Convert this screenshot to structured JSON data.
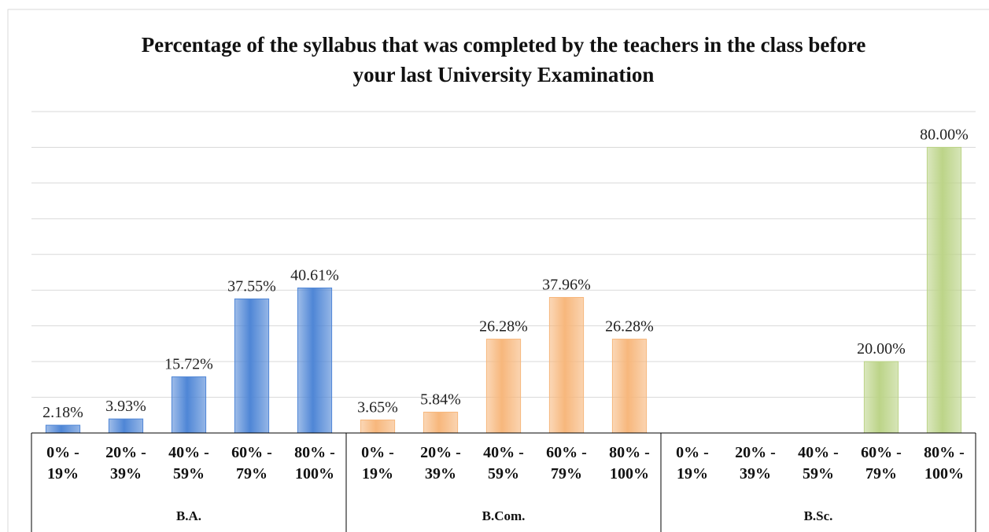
{
  "chart_data": {
    "type": "bar",
    "title": "Percentage of the syllabus that was completed by the teachers in the class before your last University Examination",
    "ylim": [
      0,
      90
    ],
    "yticks": [
      0,
      10,
      20,
      30,
      40,
      50,
      60,
      70,
      80,
      90
    ],
    "grid": true,
    "groups": [
      {
        "name": "B.A.",
        "color": "#4f86d6",
        "categories": [
          "0% - 19%",
          "20% - 39%",
          "40% - 59%",
          "60% - 79%",
          "80% - 100%"
        ],
        "values": [
          2.18,
          3.93,
          15.72,
          37.55,
          40.61
        ],
        "value_labels": [
          "2.18%",
          "3.93%",
          "15.72%",
          "37.55%",
          "40.61%"
        ]
      },
      {
        "name": "B.Com.",
        "color": "#f7b77c",
        "categories": [
          "0% - 19%",
          "20% - 39%",
          "40% - 59%",
          "60% - 79%",
          "80% - 100%"
        ],
        "values": [
          3.65,
          5.84,
          26.28,
          37.96,
          26.28
        ],
        "value_labels": [
          "3.65%",
          "5.84%",
          "26.28%",
          "37.96%",
          "26.28%"
        ]
      },
      {
        "name": "B.Sc.",
        "color": "#bcd488",
        "categories": [
          "0% - 19%",
          "20% - 39%",
          "40% - 59%",
          "60% - 79%",
          "80% - 100%"
        ],
        "values": [
          null,
          null,
          null,
          20.0,
          80.0
        ],
        "value_labels": [
          null,
          null,
          null,
          "20.00%",
          "80.00%"
        ]
      }
    ]
  }
}
